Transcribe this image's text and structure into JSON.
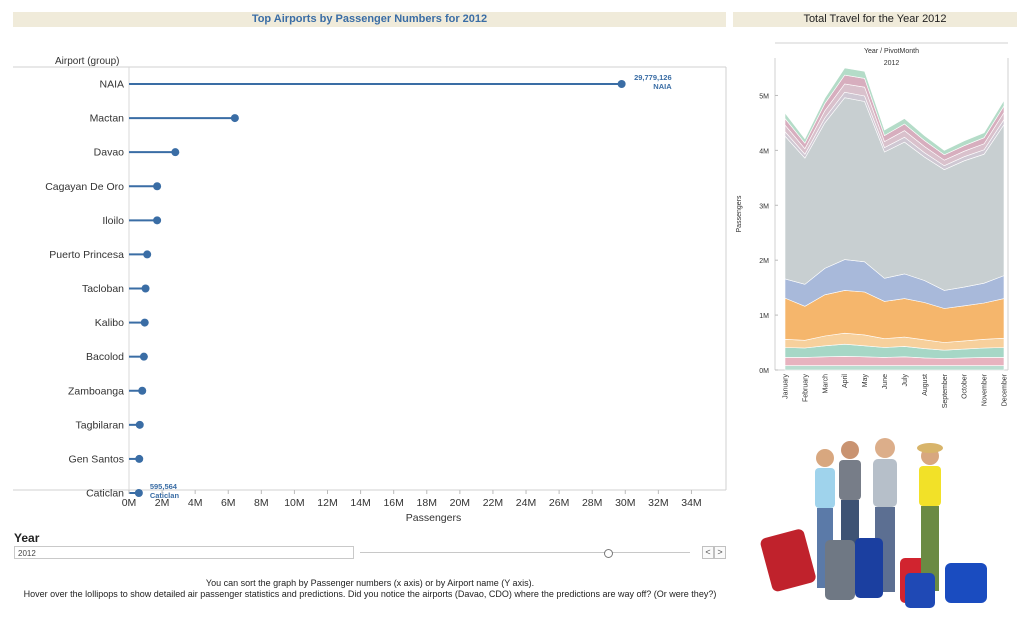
{
  "lollipop": {
    "title": "Top Airports by Passenger Numbers for  2012",
    "y_header": "Airport (group)",
    "xlabel": "Passengers",
    "top_label_value": "29,779,126",
    "top_label_name": "NAIA",
    "bottom_label_value": "595,564",
    "bottom_label_name": "Caticlan"
  },
  "area": {
    "title": "Total Travel for the Year 2012",
    "col_header": "Year  /  PivotMonth",
    "year": "2012",
    "ylabel": "Passengers"
  },
  "controls": {
    "year_label": "Year",
    "year_value": "2012",
    "prev": "<",
    "next": ">",
    "slider_fraction": 0.75
  },
  "footer": {
    "line1": "You can sort the graph by Passenger numbers (x axis) or by Airport name (Y axis).",
    "line2": "Hover over the lollipops to show detailed air passenger statistics and predictions. Did you notice the airports (Davao, CDO) where the predictions are way off? (Or were they?)"
  },
  "colors": {
    "lollipop": "#3a6da5",
    "title_bar": "#f0ebda",
    "area_series": [
      "#b9ddd0",
      "#e7b3bf",
      "#a6d7c6",
      "#f7d09c",
      "#f5b66c",
      "#a8b9da",
      "#c8cfd1",
      "#cfc8d3",
      "#d9c1cc",
      "#d7aebe",
      "#b4dcc8"
    ]
  },
  "chart_data": [
    {
      "type": "lollipop",
      "title": "Top Airports by Passenger Numbers for  2012",
      "ylabel": "Airport (group)",
      "xlabel": "Passengers",
      "xlim": [
        0,
        35000000
      ],
      "xticks": [
        "0M",
        "2M",
        "4M",
        "6M",
        "8M",
        "10M",
        "12M",
        "14M",
        "16M",
        "18M",
        "20M",
        "22M",
        "24M",
        "26M",
        "28M",
        "30M",
        "32M",
        "34M"
      ],
      "categories": [
        "NAIA",
        "Mactan",
        "Davao",
        "Cagayan De Oro",
        "Iloilo",
        "Puerto Princesa",
        "Tacloban",
        "Kalibo",
        "Bacolod",
        "Zamboanga",
        "Tagbilaran",
        "Gen Santos",
        "Caticlan"
      ],
      "values": [
        29779126,
        6400000,
        2800000,
        1700000,
        1700000,
        1100000,
        1000000,
        950000,
        900000,
        800000,
        650000,
        620000,
        595564
      ]
    },
    {
      "type": "area",
      "title": "Total Travel for the Year 2012",
      "ylabel": "Passengers",
      "ylim": [
        0,
        5500000
      ],
      "yticks": [
        "0M",
        "1M",
        "2M",
        "3M",
        "4M",
        "5M"
      ],
      "categories": [
        "January",
        "February",
        "March",
        "April",
        "May",
        "June",
        "July",
        "August",
        "September",
        "October",
        "November",
        "December"
      ],
      "series": [
        {
          "values": [
            80000,
            80000,
            80000,
            80000,
            80000,
            80000,
            80000,
            80000,
            80000,
            80000,
            80000,
            80000
          ]
        },
        {
          "values": [
            150000,
            150000,
            160000,
            170000,
            160000,
            150000,
            160000,
            140000,
            130000,
            140000,
            150000,
            150000
          ]
        },
        {
          "values": [
            180000,
            170000,
            200000,
            220000,
            200000,
            180000,
            190000,
            170000,
            150000,
            160000,
            170000,
            180000
          ]
        },
        {
          "values": [
            150000,
            140000,
            180000,
            200000,
            200000,
            160000,
            170000,
            160000,
            140000,
            150000,
            160000,
            170000
          ]
        },
        {
          "values": [
            750000,
            620000,
            750000,
            780000,
            780000,
            680000,
            700000,
            680000,
            620000,
            640000,
            660000,
            720000
          ]
        },
        {
          "values": [
            350000,
            400000,
            480000,
            560000,
            550000,
            420000,
            450000,
            400000,
            330000,
            340000,
            360000,
            420000
          ]
        },
        {
          "values": [
            2600000,
            2300000,
            2650000,
            2950000,
            2920000,
            2300000,
            2400000,
            2250000,
            2200000,
            2300000,
            2350000,
            2750000
          ]
        },
        {
          "values": [
            80000,
            70000,
            90000,
            100000,
            100000,
            80000,
            90000,
            80000,
            70000,
            75000,
            80000,
            90000
          ]
        },
        {
          "values": [
            120000,
            100000,
            130000,
            150000,
            160000,
            110000,
            120000,
            110000,
            100000,
            100000,
            110000,
            130000
          ]
        },
        {
          "values": [
            120000,
            100000,
            130000,
            160000,
            160000,
            110000,
            120000,
            110000,
            100000,
            100000,
            110000,
            120000
          ]
        },
        {
          "values": [
            100000,
            80000,
            100000,
            130000,
            130000,
            100000,
            100000,
            90000,
            80000,
            90000,
            90000,
            100000
          ]
        }
      ]
    }
  ]
}
